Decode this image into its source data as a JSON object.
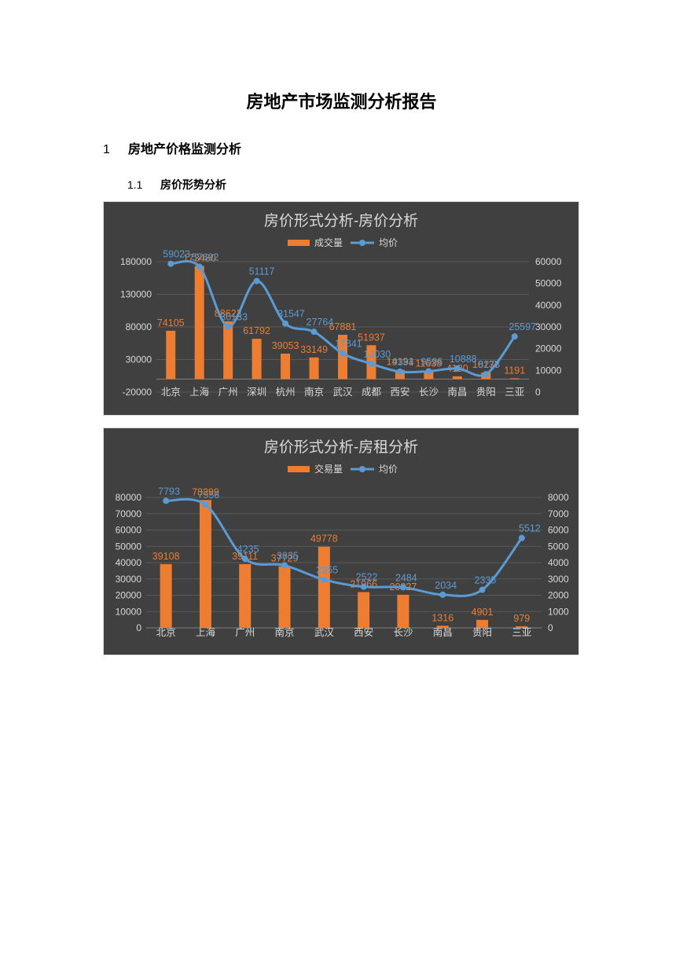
{
  "document": {
    "title": "房地产市场监测分析报告",
    "section": {
      "number": "1",
      "title": "房地产价格监测分析"
    },
    "subsection": {
      "number": "1.1",
      "title": "房价形势分析"
    }
  },
  "colors": {
    "bar": "#ed7d31",
    "line": "#5b9bd5",
    "chart_bg": "#404040",
    "axis_text": "#d9d9d9"
  },
  "chart_data": [
    {
      "type": "bar+line",
      "title": "房价形式分析-房价分析",
      "categories": [
        "北京",
        "上海",
        "广州",
        "深圳",
        "杭州",
        "南京",
        "武汉",
        "成都",
        "西安",
        "长沙",
        "南昌",
        "贵阳",
        "三亚"
      ],
      "series": [
        {
          "name": "成交量",
          "type": "bar",
          "axis": "left",
          "values": [
            74105,
            173480,
            88622,
            61792,
            39053,
            33149,
            67881,
            51937,
            14131,
            11638,
            4180,
            10137,
            1191
          ]
        },
        {
          "name": "均价",
          "type": "line",
          "axis": "right",
          "values": [
            59023,
            57692,
            30133,
            51117,
            31547,
            27764,
            17841,
            13030,
            9394,
            9596,
            10888,
            8278,
            25597
          ]
        }
      ],
      "y_left": {
        "range": [
          -20000,
          180000
        ],
        "ticks": [
          "180000",
          "130000",
          "80000",
          "30000",
          "-20000"
        ]
      },
      "y_right": {
        "range": [
          0,
          60000
        ],
        "ticks": [
          "60000",
          "50000",
          "40000",
          "30000",
          "20000",
          "10000",
          "0"
        ]
      },
      "legend": "top",
      "grid": true
    },
    {
      "type": "bar+line",
      "title": "房价形式分析-房租分析",
      "categories": [
        "北京",
        "上海",
        "广州",
        "南京",
        "武汉",
        "西安",
        "长沙",
        "南昌",
        "贵阳",
        "三亚"
      ],
      "series": [
        {
          "name": "交易量",
          "type": "bar",
          "axis": "left",
          "values": [
            39108,
            78399,
            39111,
            37729,
            49778,
            21966,
            20327,
            1316,
            4901,
            979
          ]
        },
        {
          "name": "均价",
          "type": "line",
          "axis": "right",
          "values": [
            7793,
            7556,
            4235,
            3835,
            2955,
            2522,
            2484,
            2034,
            2335,
            5512
          ]
        }
      ],
      "y_left": {
        "range": [
          0,
          80000
        ],
        "ticks": [
          "80000",
          "70000",
          "60000",
          "50000",
          "40000",
          "30000",
          "20000",
          "10000",
          "0"
        ]
      },
      "y_right": {
        "range": [
          0,
          8000
        ],
        "ticks": [
          "8000",
          "7000",
          "6000",
          "5000",
          "4000",
          "3000",
          "2000",
          "1000",
          "0"
        ]
      },
      "legend": "top",
      "grid": true
    }
  ]
}
